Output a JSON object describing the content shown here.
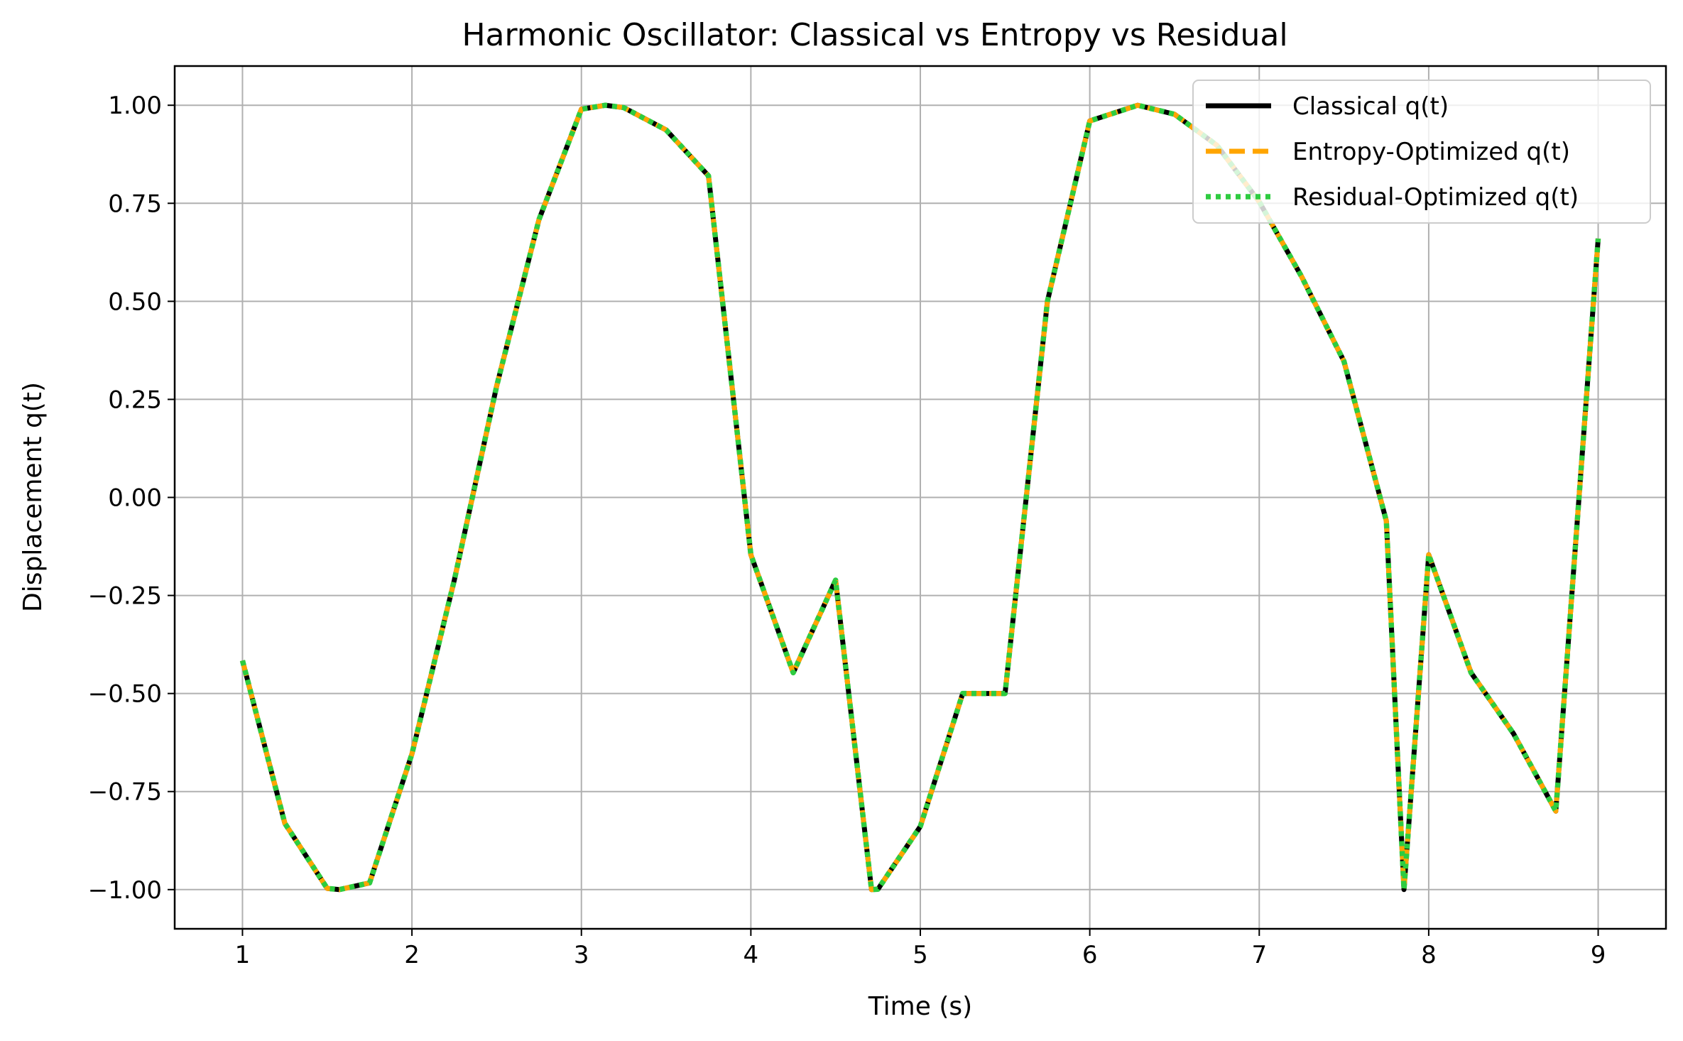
{
  "chart_data": {
    "type": "line",
    "title": "Harmonic Oscillator: Classical vs Entropy vs Residual",
    "xlabel": "Time (s)",
    "ylabel": "Displacement q(t)",
    "xlim": [
      0.6,
      9.4
    ],
    "ylim": [
      -1.1,
      1.1
    ],
    "xticks": [
      1,
      2,
      3,
      4,
      5,
      6,
      7,
      8,
      9
    ],
    "xtick_labels": [
      "1",
      "2",
      "3",
      "4",
      "5",
      "6",
      "7",
      "8",
      "9"
    ],
    "yticks": [
      1.0,
      0.75,
      0.5,
      0.25,
      0.0,
      -0.25,
      -0.5,
      -0.75,
      -1.0
    ],
    "ytick_labels": [
      "1.00",
      "0.75",
      "0.50",
      "0.25",
      "0.00",
      "−0.25",
      "−0.50",
      "−0.75",
      "−1.00"
    ],
    "grid": true,
    "legend_position": "top-right",
    "x": [
      1.0,
      1.25,
      1.5,
      1.571,
      1.75,
      2.0,
      2.25,
      2.5,
      2.75,
      3.0,
      3.142,
      3.25,
      3.5,
      3.75,
      4.0,
      4.25,
      4.5,
      4.712,
      4.75,
      5.0,
      5.25,
      5.5,
      5.75,
      6.0,
      6.283,
      6.5,
      6.75,
      7.0,
      7.25,
      7.5,
      7.75,
      7.854,
      8.0,
      8.25,
      8.5,
      8.75,
      9.0
    ],
    "series": [
      {
        "name": "Classical q(t)",
        "color": "#000000",
        "style": "solid",
        "values": [
          -0.416,
          -0.831,
          -0.997,
          -1.0,
          -0.983,
          -0.654,
          -0.211,
          0.284,
          0.709,
          0.99,
          1.0,
          0.994,
          0.937,
          0.82,
          -0.146,
          -0.447,
          -0.211,
          -1.0,
          -0.999,
          -0.839,
          -0.5,
          -0.5,
          0.5,
          0.96,
          1.0,
          0.977,
          0.898,
          0.754,
          0.563,
          0.347,
          -0.06,
          -1.0,
          -0.146,
          -0.447,
          -0.602,
          -0.8,
          0.66
        ]
      },
      {
        "name": "Entropy-Optimized q(t)",
        "color": "#FFA500",
        "style": "dashed",
        "values": [
          -0.416,
          -0.831,
          -0.997,
          -1.0,
          -0.983,
          -0.654,
          -0.211,
          0.284,
          0.709,
          0.99,
          1.0,
          0.994,
          0.937,
          0.82,
          -0.146,
          -0.447,
          -0.211,
          -1.0,
          -0.999,
          -0.839,
          -0.5,
          -0.5,
          0.5,
          0.96,
          1.0,
          0.977,
          0.898,
          0.754,
          0.563,
          0.347,
          -0.06,
          -1.0,
          -0.146,
          -0.447,
          -0.602,
          -0.8,
          0.66
        ]
      },
      {
        "name": "Residual-Optimized q(t)",
        "color": "#2ECC40",
        "style": "dotted",
        "values": [
          -0.416,
          -0.831,
          -0.997,
          -1.0,
          -0.983,
          -0.654,
          -0.211,
          0.284,
          0.709,
          0.99,
          1.0,
          0.994,
          0.937,
          0.82,
          -0.146,
          -0.447,
          -0.211,
          -1.0,
          -0.999,
          -0.839,
          -0.5,
          -0.5,
          0.5,
          0.96,
          1.0,
          0.977,
          0.898,
          0.754,
          0.563,
          0.347,
          -0.06,
          -1.0,
          -0.146,
          -0.447,
          -0.602,
          -0.8,
          0.66
        ]
      }
    ]
  }
}
